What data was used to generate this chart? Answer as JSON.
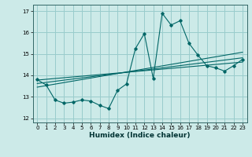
{
  "xlabel": "Humidex (Indice chaleur)",
  "ylabel": "",
  "bg_color": "#cceae8",
  "grid_color": "#99cccc",
  "line_color": "#006666",
  "xlim": [
    -0.5,
    23.5
  ],
  "ylim": [
    11.8,
    17.3
  ],
  "yticks": [
    12,
    13,
    14,
    15,
    16,
    17
  ],
  "xticks": [
    0,
    1,
    2,
    3,
    4,
    5,
    6,
    7,
    8,
    9,
    10,
    11,
    12,
    13,
    14,
    15,
    16,
    17,
    18,
    19,
    20,
    21,
    22,
    23
  ],
  "scatter_x": [
    0,
    1,
    2,
    3,
    4,
    5,
    6,
    7,
    8,
    9,
    10,
    11,
    12,
    13,
    14,
    15,
    16,
    17,
    18,
    19,
    20,
    21,
    22,
    23
  ],
  "scatter_y": [
    13.8,
    13.55,
    12.85,
    12.7,
    12.75,
    12.85,
    12.8,
    12.6,
    12.45,
    13.3,
    13.6,
    15.25,
    15.95,
    13.85,
    16.9,
    16.35,
    16.55,
    15.5,
    14.95,
    14.45,
    14.35,
    14.2,
    14.45,
    14.75
  ],
  "reg_lines": [
    {
      "x0": 0,
      "y0": 13.78,
      "x1": 23,
      "y1": 14.62
    },
    {
      "x0": 0,
      "y0": 13.62,
      "x1": 23,
      "y1": 14.82
    },
    {
      "x0": 0,
      "y0": 13.45,
      "x1": 23,
      "y1": 15.08
    }
  ],
  "xlabel_fontsize": 6.5,
  "tick_fontsize": 5.0
}
